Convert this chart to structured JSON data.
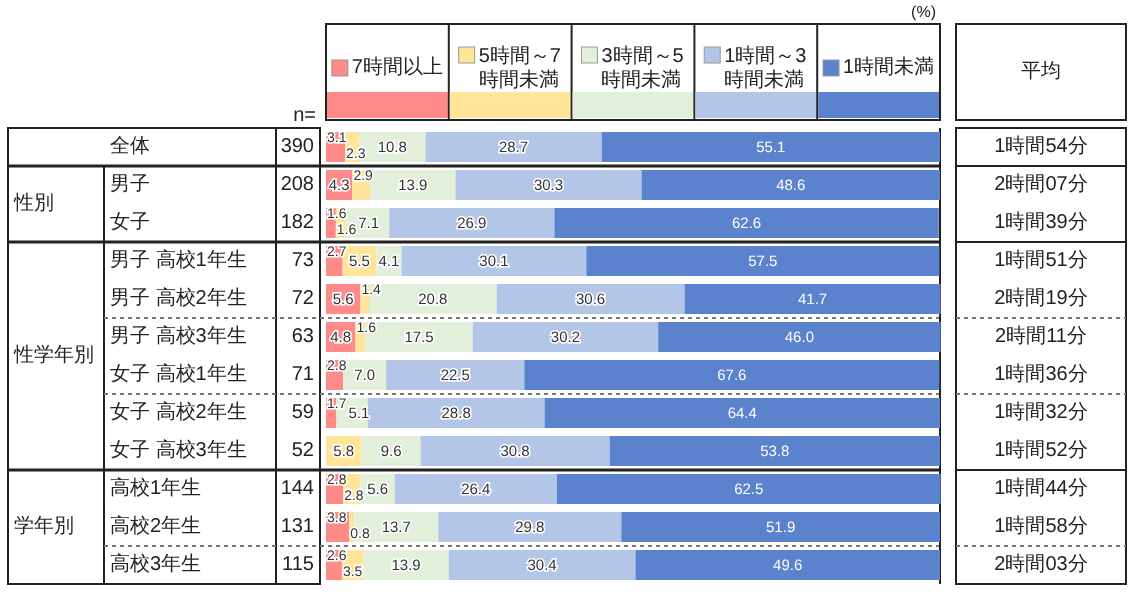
{
  "chart_data": {
    "type": "bar",
    "orientation": "horizontal",
    "stacked": true,
    "legend": "top",
    "xlim": [
      0,
      100
    ],
    "categories": [
      "全体",
      "男子",
      "女子",
      "男子 高校1年生",
      "男子 高校2年生",
      "男子 高校3年生",
      "女子 高校1年生",
      "女子 高校2年生",
      "女子 高校3年生",
      "高校1年生",
      "高校2年生",
      "高校3年生"
    ],
    "series": [
      {
        "name": "7時間以上",
        "color": "#fe8a8a",
        "values": [
          3.1,
          4.3,
          1.6,
          2.7,
          5.6,
          4.8,
          2.8,
          1.7,
          0,
          2.8,
          3.8,
          2.6
        ],
        "value_labels": [
          "3.1",
          "4.3",
          "1.6",
          "2.7",
          "5.6",
          "4.8",
          "2.8",
          "1.7",
          null,
          "2.8",
          "3.8",
          "2.6"
        ]
      },
      {
        "name": "5時間～7時間未満",
        "color": "#fee59a",
        "values": [
          2.3,
          2.9,
          1.6,
          5.5,
          1.4,
          1.6,
          0,
          0,
          5.8,
          2.8,
          0.8,
          3.5
        ],
        "value_labels": [
          "2.3",
          "2.9",
          "1.6",
          "5.5",
          "1.4",
          "1.6",
          null,
          null,
          "5.8",
          "2.8",
          "0.8",
          "3.5"
        ]
      },
      {
        "name": "3時間～5時間未満",
        "color": "#e2efda",
        "values": [
          10.8,
          13.9,
          7.1,
          4.1,
          20.8,
          17.5,
          7.0,
          5.1,
          9.6,
          5.6,
          13.7,
          13.9
        ],
        "value_labels": [
          "10.8",
          "13.9",
          "7.1",
          "4.1",
          "20.8",
          "17.5",
          "7.0",
          "5.1",
          "9.6",
          "5.6",
          "13.7",
          "13.9"
        ]
      },
      {
        "name": "1時間～3時間未満",
        "color": "#b4c6e7",
        "values": [
          28.7,
          30.3,
          26.9,
          30.1,
          30.6,
          30.2,
          22.5,
          28.8,
          30.8,
          26.4,
          29.8,
          30.4
        ],
        "value_labels": [
          "28.7",
          "30.3",
          "26.9",
          "30.1",
          "30.6",
          "30.2",
          "22.5",
          "28.8",
          "30.8",
          "26.4",
          "29.8",
          "30.4"
        ]
      },
      {
        "name": "1時間未満",
        "color": "#5b82cd",
        "values": [
          55.1,
          48.6,
          62.6,
          57.5,
          41.7,
          46.0,
          67.6,
          64.4,
          53.8,
          62.5,
          51.9,
          49.6
        ],
        "value_labels": [
          "55.1",
          "48.6",
          "62.6",
          "57.5",
          "41.7",
          "46.0",
          "67.6",
          "64.4",
          "53.8",
          "62.5",
          "51.9",
          "49.6"
        ]
      }
    ],
    "annotations": [
      "(%)",
      "n=",
      "平均",
      "性別",
      "性学年別",
      "学年別",
      "390",
      "208",
      "182",
      "73",
      "72",
      "63",
      "71",
      "59",
      "52",
      "144",
      "131",
      "115",
      "1時間54分",
      "2時間07分",
      "1時間39分",
      "1時間51分",
      "2時間19分",
      "2時間11分",
      "1時間36分",
      "1時間32分",
      "1時間52分",
      "1時間44分",
      "1時間58分",
      "2時間03分"
    ]
  }
}
